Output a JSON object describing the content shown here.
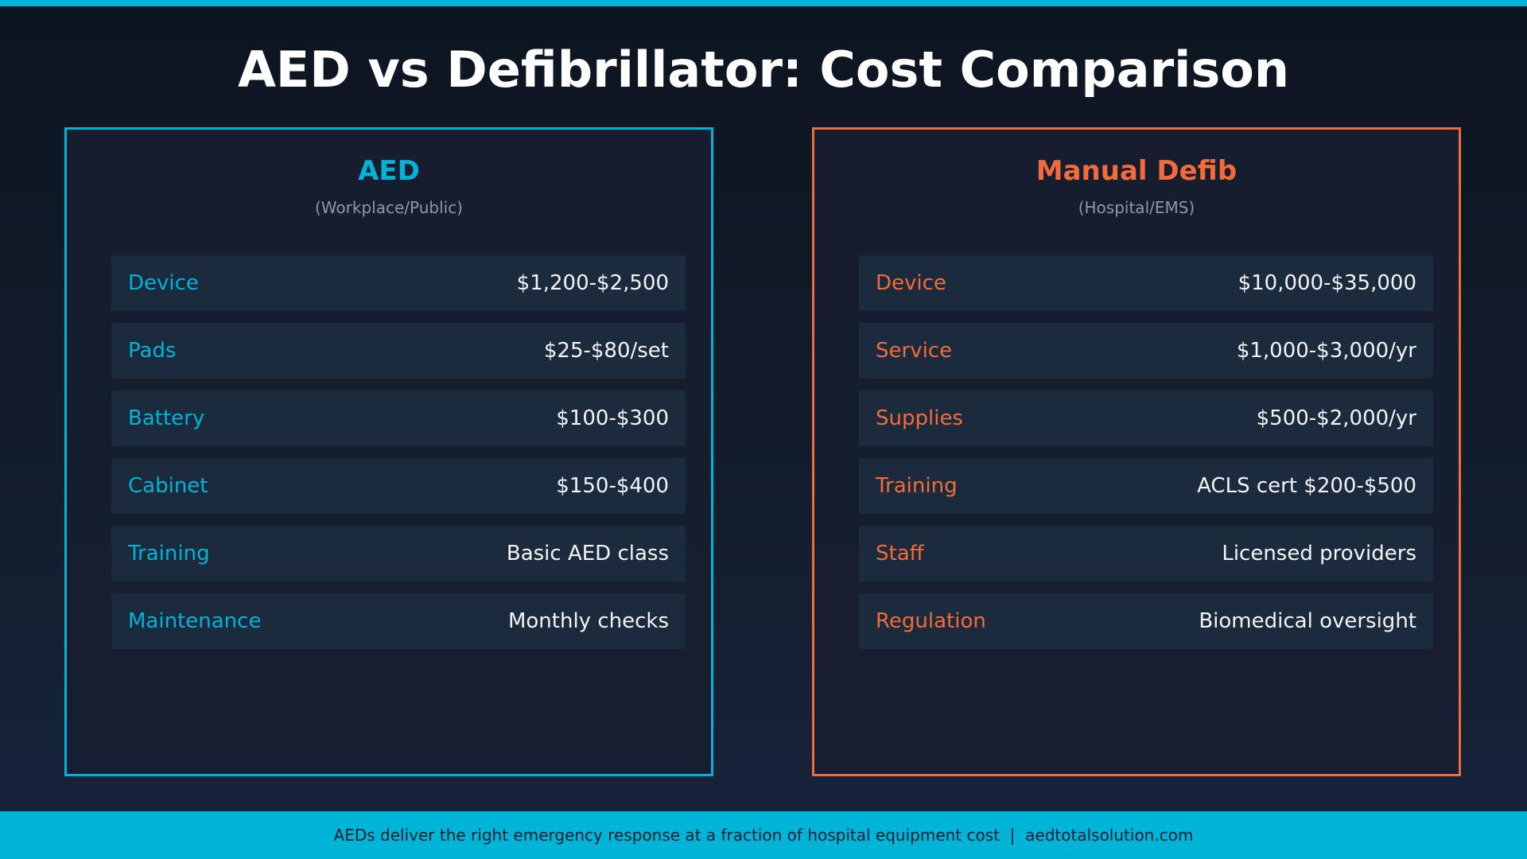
{
  "title": "AED vs Defibrillator: Cost Comparison",
  "colors": {
    "aed": "#00b4d8",
    "manual": "#f26b3a",
    "background": "#121c2b",
    "footer": "#00b4d8"
  },
  "aed": {
    "title": "AED",
    "subtitle": "(Workplace/Public)",
    "rows": [
      {
        "label": "Device",
        "value": "$1,200-$2,500"
      },
      {
        "label": "Pads",
        "value": "$25-$80/set"
      },
      {
        "label": "Battery",
        "value": "$100-$300"
      },
      {
        "label": "Cabinet",
        "value": "$150-$400"
      },
      {
        "label": "Training",
        "value": "Basic AED class"
      },
      {
        "label": "Maintenance",
        "value": "Monthly checks"
      }
    ]
  },
  "manual": {
    "title": "Manual Defib",
    "subtitle": "(Hospital/EMS)",
    "rows": [
      {
        "label": "Device",
        "value": "$10,000-$35,000"
      },
      {
        "label": "Service",
        "value": "$1,000-$3,000/yr"
      },
      {
        "label": "Supplies",
        "value": "$500-$2,000/yr"
      },
      {
        "label": "Training",
        "value": "ACLS cert $200-$500"
      },
      {
        "label": "Staff",
        "value": "Licensed providers"
      },
      {
        "label": "Regulation",
        "value": "Biomedical oversight"
      }
    ]
  },
  "footer": "AEDs deliver the right emergency response at a fraction of hospital equipment cost  |  aedtotalsolution.com"
}
